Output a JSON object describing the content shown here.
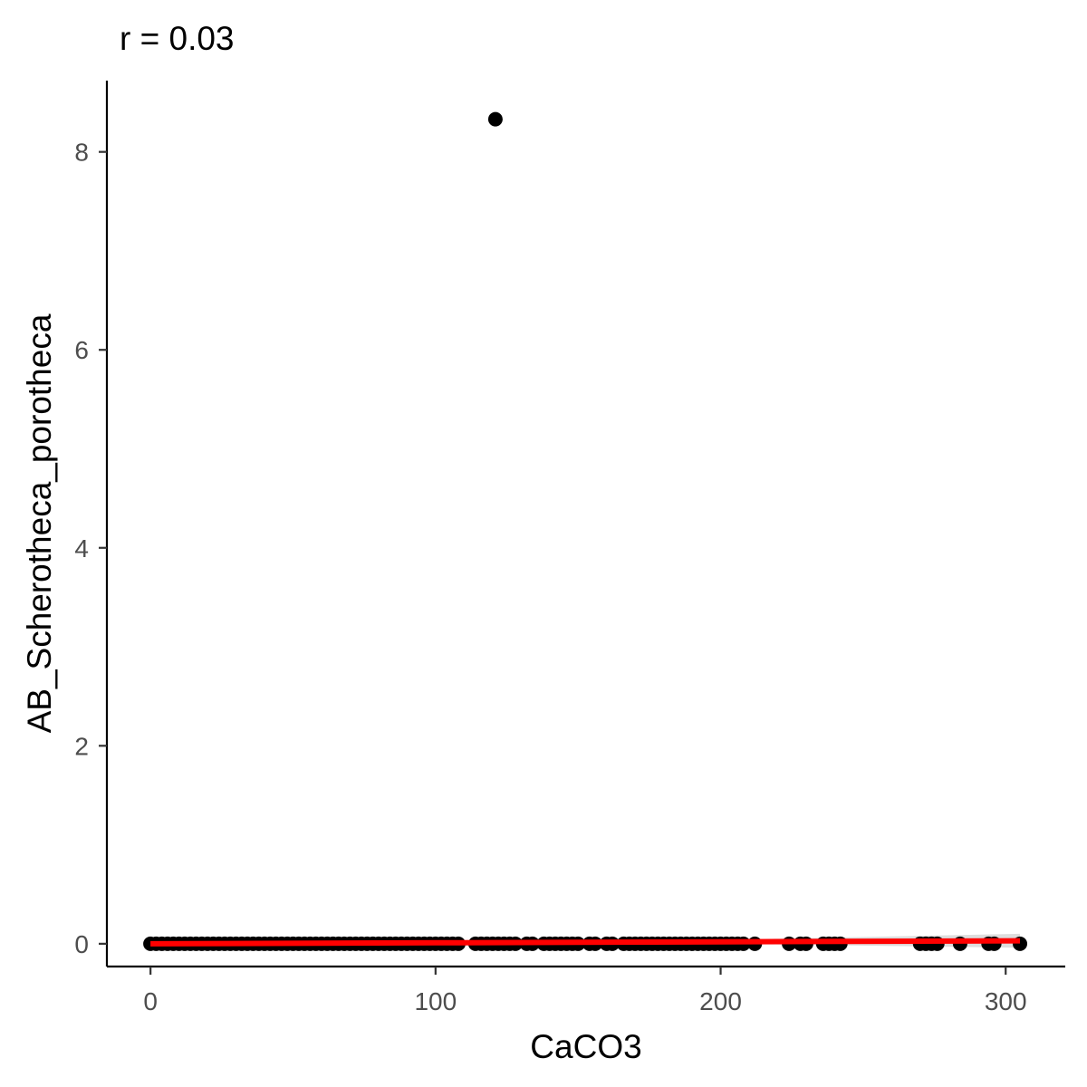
{
  "chart_data": {
    "type": "scatter",
    "title": "r = 0.03",
    "xlabel": "CaCO3",
    "ylabel": "AB_Scherotheca_porotheca",
    "xlim": [
      -15.3,
      320.9
    ],
    "ylim": [
      -0.23,
      8.72
    ],
    "x_ticks": [
      0,
      100,
      200,
      300
    ],
    "y_ticks": [
      0,
      2,
      4,
      6,
      8
    ],
    "grid": false,
    "legend": "none",
    "point_color": "#000000",
    "trend_color": "#ff0000",
    "ribbon_color": "#d9d9d9",
    "points": {
      "x": [
        0,
        2,
        4,
        6,
        8,
        10,
        12,
        14,
        16,
        18,
        20,
        22,
        24,
        26,
        28,
        30,
        32,
        34,
        36,
        38,
        40,
        42,
        44,
        46,
        48,
        50,
        52,
        54,
        56,
        58,
        60,
        62,
        64,
        66,
        68,
        70,
        72,
        74,
        76,
        78,
        80,
        82,
        84,
        86,
        88,
        90,
        92,
        94,
        96,
        98,
        100,
        102,
        104,
        106,
        108,
        114,
        116,
        118,
        120,
        121,
        122,
        124,
        126,
        128,
        132,
        134,
        138,
        140,
        142,
        144,
        146,
        148,
        150,
        154,
        156,
        160,
        162,
        166,
        168,
        170,
        172,
        174,
        176,
        178,
        180,
        182,
        184,
        186,
        188,
        190,
        192,
        194,
        196,
        198,
        200,
        202,
        204,
        206,
        208,
        212,
        224,
        228,
        230,
        236,
        238,
        240,
        242,
        270,
        272,
        274,
        276,
        284,
        294,
        296,
        305
      ],
      "y": [
        0,
        0,
        0,
        0,
        0,
        0,
        0,
        0,
        0,
        0,
        0,
        0,
        0,
        0,
        0,
        0,
        0,
        0,
        0,
        0,
        0,
        0,
        0,
        0,
        0,
        0,
        0,
        0,
        0,
        0,
        0,
        0,
        0,
        0,
        0,
        0,
        0,
        0,
        0,
        0,
        0,
        0,
        0,
        0,
        0,
        0,
        0,
        0,
        0,
        0,
        0,
        0,
        0,
        0,
        0,
        0,
        0,
        0,
        0,
        8.33,
        0,
        0,
        0,
        0,
        0,
        0,
        0,
        0,
        0,
        0,
        0,
        0,
        0,
        0,
        0,
        0,
        0,
        0,
        0,
        0,
        0,
        0,
        0,
        0,
        0,
        0,
        0,
        0,
        0,
        0,
        0,
        0,
        0,
        0,
        0,
        0,
        0,
        0,
        0,
        0,
        0,
        0,
        0,
        0,
        0,
        0,
        0,
        0,
        0,
        0,
        0,
        0,
        0,
        0,
        0
      ]
    },
    "trend": {
      "x": [
        0,
        100,
        200,
        305
      ],
      "y": [
        0.0,
        0.01,
        0.02,
        0.03
      ],
      "ribbon_lower": [
        -0.01,
        0.0,
        0.0,
        -0.04
      ],
      "ribbon_upper": [
        0.01,
        0.02,
        0.04,
        0.1
      ]
    }
  }
}
